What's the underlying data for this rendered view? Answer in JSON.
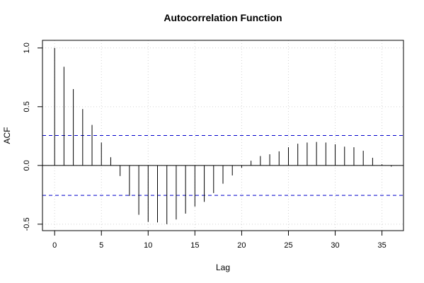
{
  "chart_data": {
    "type": "bar",
    "title": "Autocorrelation Function",
    "xlabel": "Lag",
    "ylabel": "ACF",
    "xlim": [
      -1.3,
      37.3
    ],
    "ylim": [
      -0.555,
      1.065
    ],
    "x_ticks": [
      0,
      5,
      10,
      15,
      20,
      25,
      30,
      35
    ],
    "y_ticks": [
      -0.5,
      0.0,
      0.5,
      1.0
    ],
    "y_tick_labels": [
      "-0.5",
      "0.0",
      "0.5",
      "1.0"
    ],
    "grid": true,
    "confidence_bounds": [
      0.255,
      -0.255
    ],
    "colors": {
      "spike": "#000000",
      "bounds": "#0000cc",
      "zero_line": "#000000",
      "grid": "#d3d3d3"
    },
    "lags": [
      0,
      1,
      2,
      3,
      4,
      5,
      6,
      7,
      8,
      9,
      10,
      11,
      12,
      13,
      14,
      15,
      16,
      17,
      18,
      19,
      20,
      21,
      22,
      23,
      24,
      25,
      26,
      27,
      28,
      29,
      30,
      31,
      32,
      33,
      34,
      35,
      36
    ],
    "values": [
      1.0,
      0.84,
      0.65,
      0.48,
      0.345,
      0.195,
      0.07,
      -0.09,
      -0.26,
      -0.42,
      -0.48,
      -0.485,
      -0.5,
      -0.46,
      -0.41,
      -0.35,
      -0.31,
      -0.235,
      -0.155,
      -0.085,
      -0.02,
      0.04,
      0.08,
      0.095,
      0.12,
      0.155,
      0.185,
      0.195,
      0.2,
      0.195,
      0.18,
      0.16,
      0.155,
      0.125,
      0.065,
      0.01,
      -0.01
    ]
  }
}
